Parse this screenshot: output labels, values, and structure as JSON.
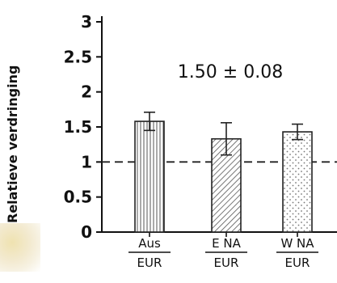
{
  "chart_data": {
    "type": "bar",
    "categories": [
      {
        "top": "Aus",
        "bottom": "EUR"
      },
      {
        "top": "E NA",
        "bottom": "EUR"
      },
      {
        "top": "W NA",
        "bottom": "EUR"
      }
    ],
    "values": [
      1.58,
      1.33,
      1.43
    ],
    "errors": [
      0.13,
      0.23,
      0.11
    ],
    "patterns": [
      "vertical-lines",
      "diagonal-hatch",
      "dots"
    ],
    "reference_line": 1.0,
    "annotation": "1.50 ± 0.08",
    "ylabel": "Relatieve verdringing",
    "ylim": [
      0,
      3
    ],
    "yticks": [
      "0",
      "0.5",
      "1",
      "1.5",
      "2",
      "2.5",
      "3"
    ],
    "grid": false,
    "colors": {
      "bar_stroke": "#222222",
      "fill": "#ffffff",
      "corner": "#efe2b0"
    }
  }
}
